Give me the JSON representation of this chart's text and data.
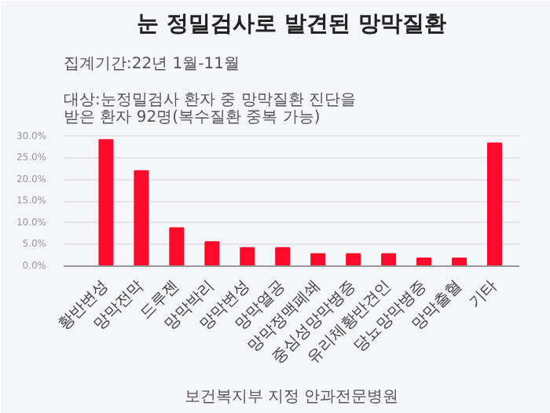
{
  "chart_data": {
    "type": "bar",
    "title": "눈 정밀검사로 발견된 망막질환",
    "annotations": [
      "집계기간:22년 1월-11월",
      "대상:눈정밀검사 환자 중 망막질환 진단을 받은 환자 92명(복수질환 중복 가능)",
      "보건복지부 지정 안과전문병원"
    ],
    "categories": [
      "황반변성",
      "망막전막",
      "드루젠",
      "망막박리",
      "망막변성",
      "망막열공",
      "망막정맥폐쇄",
      "중심성망막병증",
      "유리체황반견인",
      "당뇨망막병증",
      "망막출혈",
      "기타"
    ],
    "values": [
      29.2,
      22.0,
      8.8,
      5.6,
      4.2,
      4.2,
      2.8,
      2.8,
      2.8,
      1.8,
      1.8,
      28.4
    ],
    "color": "#ff0a2a",
    "ylim": [
      0,
      30.5
    ],
    "yticks": [
      {
        "value": 0,
        "label": "0.0%"
      },
      {
        "value": 5,
        "label": "5.0%"
      },
      {
        "value": 10,
        "label": "10.0%"
      },
      {
        "value": 15,
        "label": "15.0%"
      },
      {
        "value": 20,
        "label": "20.0%"
      },
      {
        "value": 25,
        "label": "25.0%"
      },
      {
        "value": 30,
        "label": "30.0%"
      }
    ],
    "grid": "y"
  }
}
